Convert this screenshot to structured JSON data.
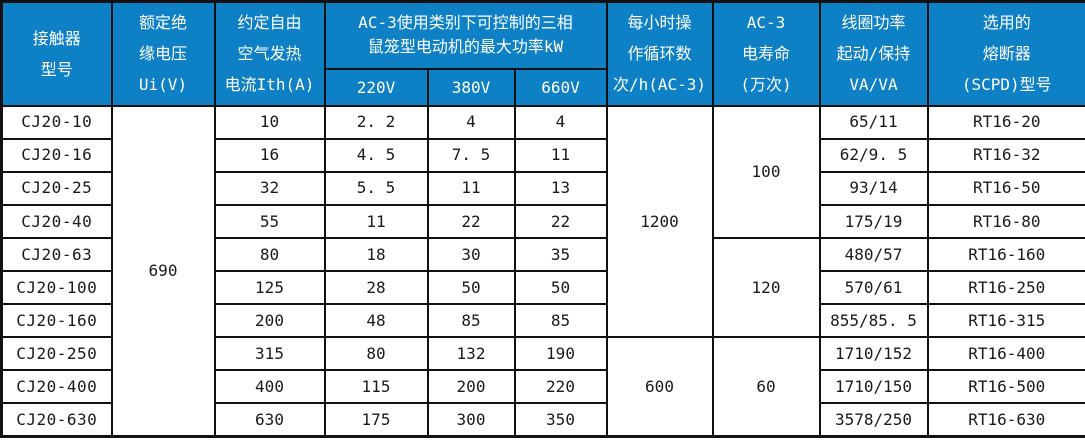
{
  "table": {
    "title_semantic": "CJ20 contactor specification table",
    "colors": {
      "header_bg": "#0e80c5",
      "header_text": "#ffffff",
      "border": "#111111",
      "body_text": "#1a1a1a"
    },
    "header": {
      "contactor": "接触器\n型号",
      "insulation": "额定绝\n缘电压\nUi(V)",
      "thermal": "约定自由\n空气发热\n电流Ith(A)",
      "kw_group": "AC-3使用类别下可控制的三相\n鼠笼型电动机的最大功率kW",
      "kw_cols": [
        "220V",
        "380V",
        "660V"
      ],
      "cycles": "每小时操\n作循环数\n次/h(AC-3)",
      "life": "AC-3\n电寿命\n(万次)",
      "coil": "线圈功率\n起动/保持\nVA/VA",
      "fuse": "选用的\n熔断器\n(SCPD)型号"
    },
    "merged": {
      "ui_voltage": [
        {
          "value": "690",
          "start": 0,
          "span": 10
        }
      ],
      "cycles": [
        {
          "value": "1200",
          "start": 0,
          "span": 7
        },
        {
          "value": "600",
          "start": 7,
          "span": 3
        }
      ],
      "life": [
        {
          "value": "100",
          "start": 0,
          "span": 4
        },
        {
          "value": "120",
          "start": 4,
          "span": 3
        },
        {
          "value": "60",
          "start": 7,
          "span": 3
        }
      ]
    },
    "rows": [
      {
        "model": "CJ20-10",
        "ith": "10",
        "kw220": "2. 2",
        "kw380": "4",
        "kw660": "4",
        "coil": "65/11",
        "fuse": "RT16-20"
      },
      {
        "model": "CJ20-16",
        "ith": "16",
        "kw220": "4. 5",
        "kw380": "7. 5",
        "kw660": "11",
        "coil": "62/9. 5",
        "fuse": "RT16-32"
      },
      {
        "model": "CJ20-25",
        "ith": "32",
        "kw220": "5. 5",
        "kw380": "11",
        "kw660": "13",
        "coil": "93/14",
        "fuse": "RT16-50"
      },
      {
        "model": "CJ20-40",
        "ith": "55",
        "kw220": "11",
        "kw380": "22",
        "kw660": "22",
        "coil": "175/19",
        "fuse": "RT16-80"
      },
      {
        "model": "CJ20-63",
        "ith": "80",
        "kw220": "18",
        "kw380": "30",
        "kw660": "35",
        "coil": "480/57",
        "fuse": "RT16-160"
      },
      {
        "model": "CJ20-100",
        "ith": "125",
        "kw220": "28",
        "kw380": "50",
        "kw660": "50",
        "coil": "570/61",
        "fuse": "RT16-250"
      },
      {
        "model": "CJ20-160",
        "ith": "200",
        "kw220": "48",
        "kw380": "85",
        "kw660": "85",
        "coil": "855/85. 5",
        "fuse": "RT16-315"
      },
      {
        "model": "CJ20-250",
        "ith": "315",
        "kw220": "80",
        "kw380": "132",
        "kw660": "190",
        "coil": "1710/152",
        "fuse": "RT16-400"
      },
      {
        "model": "CJ20-400",
        "ith": "400",
        "kw220": "115",
        "kw380": "200",
        "kw660": "220",
        "coil": "1710/150",
        "fuse": "RT16-500"
      },
      {
        "model": "CJ20-630",
        "ith": "630",
        "kw220": "175",
        "kw380": "300",
        "kw660": "350",
        "coil": "3578/250",
        "fuse": "RT16-630"
      }
    ]
  }
}
